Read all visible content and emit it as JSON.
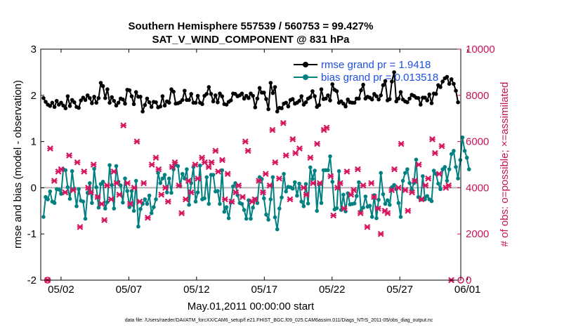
{
  "chart_data": {
    "type": "line",
    "title_line1": "Southern Hemisphere 557539 / 560753 = 99.427%",
    "title_line2": "SAT_V_WIND_COMPONENT @ 831 hPa",
    "xlabel": "May.01,2011 00:00:00 start",
    "ylabel_left": "rmse and bias (model - observation)",
    "ylabel_right": "# of obs: o=possible; ×=assimilated",
    "footer": "data file: /Users/raeder/DAI/ATM_forcXX/CAM6_setup/f.e21.FHIST_BGC.f09_025.CAM6assim.011/Diags_NTrS_2011-05/obs_diag_output.nc",
    "xlim": [
      0.5,
      31.5
    ],
    "ylim_left": [
      -2,
      3
    ],
    "ylim_right": [
      0,
      10000
    ],
    "x_ticks": [
      2,
      7,
      12,
      17,
      22,
      27,
      32
    ],
    "x_tick_labels": [
      "05/02",
      "05/07",
      "05/12",
      "05/17",
      "05/22",
      "05/27",
      "06/01"
    ],
    "y_left_ticks": [
      -2,
      -1,
      0,
      1,
      2,
      3
    ],
    "y_left_tick_labels": [
      "-2",
      "-1",
      "0",
      "1",
      "2",
      "3"
    ],
    "y_right_ticks": [
      0,
      2000,
      4000,
      6000,
      8000,
      10000
    ],
    "y_right_tick_labels": [
      "0",
      "2000",
      "4000",
      "6000",
      "8000",
      "10000"
    ],
    "legend": [
      {
        "name": "rmse grand pr = 1.9418",
        "color": "#000000"
      },
      {
        "name": "bias grand pr = 0.013518",
        "color": "#008080"
      }
    ],
    "colors": {
      "rmse": "#000000",
      "bias": "#008080",
      "obs": "#d6145e",
      "zero_line": "#b0b0b0"
    },
    "rmse": [
      1.94,
      1.86,
      1.8,
      1.77,
      1.84,
      1.75,
      1.88,
      1.8,
      1.84,
      1.78,
      1.72,
      1.98,
      1.77,
      1.9,
      1.85,
      1.75,
      1.73,
      1.89,
      1.95,
      1.9,
      2.0,
      1.94,
      1.83,
      1.97,
      1.84,
      1.94,
      2.27,
      2.2,
      1.94,
      2.13,
      1.84,
      1.96,
      1.88,
      1.78,
      1.84,
      1.93,
      1.91,
      1.82,
      2.12,
      2.11,
      1.98,
      1.81,
      2.07,
      1.97,
      1.97,
      1.65,
      1.79,
      1.93,
      1.85,
      1.75,
      1.86,
      1.85,
      1.74,
      1.76,
      1.98,
      1.78,
      1.87,
      1.84,
      2.13,
      2.08,
      1.82,
      1.83,
      1.85,
      1.9,
      2.1,
      1.9,
      1.9,
      2.03,
      1.84,
      1.84,
      1.99,
      1.84,
      1.81,
      1.99,
      2.03,
      2.18,
      2.03,
      1.87,
      2.0,
      1.85,
      2.04,
      1.98,
      1.81,
      1.8,
      1.86,
      1.89,
      2.04,
      2.03,
      1.98,
      2.0,
      2.04,
      1.93,
      1.99,
      1.94,
      2.04,
      1.99,
      1.74,
      1.93,
      2.16,
      2.06,
      2.06,
      1.92,
      1.7,
      2.27,
      2.05,
      2.18,
      1.65,
      1.73,
      1.72,
      1.82,
      1.84,
      1.76,
      1.9,
      1.92,
      1.82,
      1.84,
      1.88,
      1.98,
      1.8,
      1.85,
      1.93,
      1.96,
      2.09,
      1.98,
      1.75,
      1.79,
      2.13,
      1.92,
      1.93,
      2.0,
      1.89,
      2.24,
      2.12,
      2.09,
      1.84,
      1.87,
      1.82,
      1.76,
      1.91,
      1.85,
      1.84,
      1.84,
      1.93,
      1.93,
      2.11,
      2.23,
      1.93,
      1.97,
      1.95,
      1.91,
      2.03,
      1.98,
      1.91,
      2.0,
      2.22,
      2.31,
      1.89,
      1.92,
      2.3,
      2.5,
      1.87,
      1.93,
      2.07,
      1.91,
      1.87,
      1.85,
      1.93,
      2.01,
      1.99,
      1.95,
      1.94,
      1.8,
      1.95,
      1.95,
      1.89,
      2.02,
      1.83,
      2.04,
      2.03,
      2.22,
      2.18,
      2.3,
      2.37,
      2.4,
      2.25,
      2.35,
      2.25,
      2.1,
      1.85
    ],
    "bias": [
      -0.63,
      -0.2,
      -0.25,
      -0.08,
      -0.3,
      -0.33,
      -0.03,
      -0.04,
      -0.13,
      0.4,
      0.38,
      0.01,
      -0.24,
      0.36,
      -0.02,
      -0.4,
      -0.03,
      -0.28,
      -0.3,
      -0.67,
      -0.11,
      0.1,
      -0.33,
      0.41,
      0.01,
      -0.43,
      0.08,
      0.13,
      -0.45,
      -0.31,
      0.49,
      0.06,
      -0.45,
      0.47,
      0.13,
      0.05,
      -0.32,
      0.2,
      -0.07,
      -0.42,
      -0.07,
      -0.5,
      0.15,
      -0.84,
      -0.46,
      -0.35,
      -0.25,
      -0.35,
      -0.17,
      -0.55,
      -0.42,
      -0.25,
      0.32,
      0.1,
      0.2,
      0.28,
      -0.1,
      0.2,
      -0.11,
      0.4,
      0.5,
      0.47,
      0.04,
      0.3,
      0.2,
      0.4,
      -0.37,
      0.1,
      0.45,
      -0.3,
      -0.1,
      0.48,
      -0.25,
      -0.23,
      0.23,
      -0.35,
      0.28,
      0.28,
      -0.08,
      -0.07,
      -0.35,
      0.38,
      -0.52,
      -0.42,
      -0.66,
      -0.32,
      0.03,
      0.1,
      -0.16,
      -0.33,
      -0.35,
      -0.48,
      -0.67,
      -0.27,
      -0.67,
      -0.43,
      -0.25,
      -0.33,
      0.23,
      0.19,
      -0.23,
      -0.58,
      -0.69,
      -0.25,
      0.23,
      -0.64,
      -0.9,
      -0.45,
      -0.21,
      0.3,
      -0.08,
      0.02,
      0.01,
      -0.02,
      0.12,
      -0.17,
      0.09,
      -0.3,
      -0.4,
      0.08,
      -0.34,
      0.44,
      0.19,
      0.37,
      -0.5,
      0.07,
      -0.33,
      0.38,
      0.38,
      0.38,
      0.68,
      0.13,
      -0.47,
      -0.44,
      0.36,
      -0.48,
      -0.15,
      -0.51,
      -0.12,
      -0.36,
      -0.35,
      -0.34,
      -0.18,
      0.12,
      -0.5,
      -0.43,
      -0.19,
      -0.41,
      -0.39,
      -0.63,
      -0.16,
      -0.66,
      -0.26,
      0.32,
      -0.14,
      -0.35,
      -0.27,
      -0.37,
      0.01,
      0.06,
      -0.03,
      -0.33,
      -0.63,
      0.15,
      0.32,
      0.4,
      0.1,
      -0.03,
      0.1,
      0.61,
      -0.2,
      -0.26,
      0.25,
      -0.25,
      -0.18,
      -0.25,
      -0.29,
      0.37,
      0.3,
      0.09,
      -0.03,
      0.4,
      0.45,
      0.15,
      0.4,
      0.73,
      0.8,
      0.45,
      0.2,
      0.6,
      1.09,
      0.8,
      0.65,
      0.4
    ],
    "obs_assimilated_x": [
      1.0,
      1.2,
      1.5,
      1.8,
      2.0,
      2.3,
      2.6,
      2.9,
      3.2,
      3.4,
      3.7,
      4.0,
      4.2,
      4.4,
      4.7,
      5.0,
      5.2,
      5.4,
      5.7,
      5.9,
      6.1,
      6.3,
      6.6,
      6.9,
      7.1,
      7.4,
      7.6,
      7.8,
      8.1,
      8.4,
      8.7,
      9.0,
      9.2,
      9.4,
      9.7,
      9.9,
      10.2,
      10.4,
      10.7,
      10.9,
      11.2,
      11.4,
      11.6,
      11.9,
      12.1,
      12.4,
      12.6,
      12.9,
      13.1,
      13.4,
      13.6,
      13.9,
      14.1,
      14.3,
      14.6,
      14.9,
      15.1,
      15.4,
      15.6,
      15.8,
      16.1,
      16.3,
      16.6,
      16.9,
      17.1,
      17.4,
      17.6,
      17.8,
      18.1,
      18.4,
      18.6,
      18.9,
      19.1,
      19.3,
      19.6,
      19.9,
      20.1,
      20.4,
      20.6,
      20.9,
      21.1,
      21.4,
      21.6,
      21.9,
      22.1,
      22.4,
      22.6,
      22.9,
      23.1,
      23.4,
      23.6,
      23.9,
      24.1,
      24.3,
      24.6,
      24.9,
      25.1,
      25.4,
      25.6,
      25.9,
      26.1,
      26.4,
      26.6,
      26.9,
      27.1,
      27.4,
      27.6,
      27.9,
      28.1,
      28.4,
      28.6,
      28.9,
      29.1,
      29.4,
      29.6,
      29.9,
      30.1,
      30.4,
      30.6,
      30.8,
      31.1,
      31.3
    ],
    "obs_assimilated": [
      0,
      5700,
      4300,
      4700,
      4800,
      3800,
      5400,
      3900,
      5100,
      2300,
      4700,
      4000,
      3800,
      5000,
      3600,
      3300,
      2600,
      4100,
      3500,
      4700,
      4200,
      3700,
      6700,
      4200,
      3300,
      4000,
      6000,
      3400,
      4200,
      2700,
      5000,
      5300,
      4800,
      3700,
      4000,
      3400,
      4900,
      5100,
      4100,
      2900,
      3500,
      4300,
      3800,
      5000,
      4400,
      5300,
      5100,
      4900,
      5100,
      5600,
      4700,
      5200,
      3500,
      4600,
      3400,
      3800,
      4100,
      3600,
      6000,
      5600,
      3400,
      3500,
      4300,
      3800,
      4600,
      4100,
      6500,
      5100,
      4400,
      6800,
      5400,
      3500,
      6100,
      5500,
      5700,
      4000,
      3700,
      5300,
      4200,
      5900,
      4200,
      6500,
      6600,
      4500,
      2800,
      4000,
      4200,
      3100,
      4700,
      3700,
      3900,
      4800,
      2900,
      4100,
      2300,
      4200,
      3600,
      3100,
      2000,
      3000,
      2900,
      3900,
      4800,
      4000,
      5900,
      3900,
      3000,
      3800,
      4300,
      5000,
      3500,
      4100,
      4400,
      6100,
      5500,
      4600,
      5800,
      4000,
      4100,
      0
    ],
    "obs_possible_x": [
      1.0,
      31.5
    ],
    "obs_possible": [
      0,
      0
    ]
  }
}
